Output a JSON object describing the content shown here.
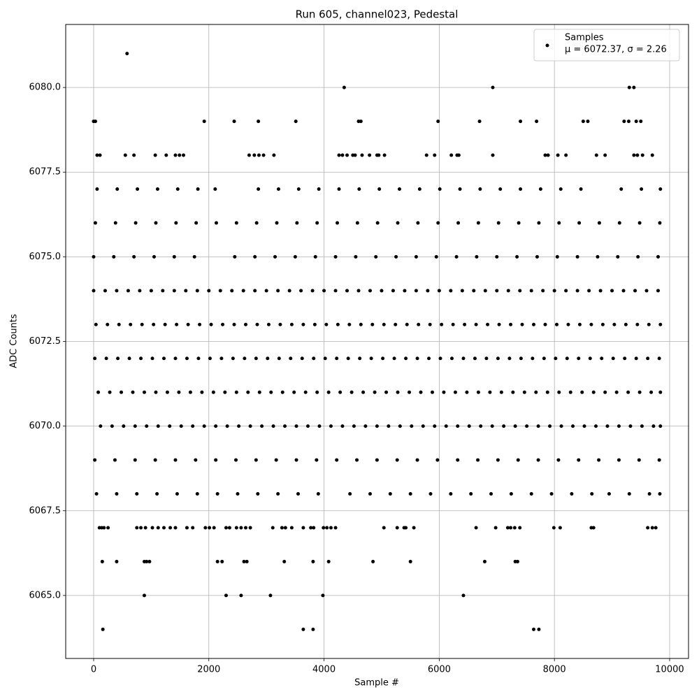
{
  "chart_data": {
    "type": "scatter",
    "title": "Run 605, channel023, Pedestal",
    "x_label": "Sample #",
    "y_label": "ADC Counts",
    "legend_stats": "μ = 6072.37, σ = 2.26",
    "legend_position": "upper right",
    "grid": true,
    "xlim": [
      -485,
      10328
    ],
    "xticks": [
      0,
      2000,
      4000,
      6000,
      8000,
      10000
    ],
    "ylim": [
      6063.14,
      6081.86
    ],
    "yticks": [
      {
        "value": 6065,
        "label": "6065.0"
      },
      {
        "value": 6067.5,
        "label": "6067.5"
      },
      {
        "value": 6070,
        "label": "6070.0"
      },
      {
        "value": 6072.5,
        "label": "6072.5"
      },
      {
        "value": 6075,
        "label": "6075.0"
      },
      {
        "value": 6077.5,
        "label": "6077.5"
      },
      {
        "value": 6080,
        "label": "6080.0"
      }
    ],
    "series": [
      {
        "name": "Samples",
        "color": "#000000",
        "x": [
          580,
          4350,
          6930,
          9300,
          9380,
          0,
          30,
          1920,
          2440,
          2860,
          3510,
          4600,
          4640,
          5980,
          6700,
          7410,
          7690,
          8500,
          8580,
          9210,
          9290,
          9420,
          9500,
          60,
          110,
          550,
          700,
          1070,
          1260,
          1420,
          1490,
          1560,
          2700,
          2790,
          2870,
          2950,
          3130,
          4260,
          4320,
          4400,
          4500,
          4540,
          4660,
          4790,
          4920,
          4950,
          5050,
          5780,
          5920,
          6210,
          6310,
          6340,
          6930,
          7840,
          7890,
          8060,
          8200,
          8730,
          8880,
          9380,
          9440,
          9530,
          9700,
          60,
          410,
          760,
          1110,
          1460,
          1810,
          2110,
          2860,
          3210,
          3560,
          3910,
          4260,
          4610,
          4960,
          5310,
          5660,
          6010,
          6360,
          6710,
          7060,
          7410,
          7760,
          8110,
          8460,
          9160,
          9510,
          9840,
          30,
          380,
          730,
          1080,
          1430,
          1780,
          2130,
          2480,
          2830,
          3180,
          3530,
          3880,
          4230,
          4580,
          4930,
          5280,
          5630,
          5980,
          6330,
          6680,
          7030,
          7380,
          7730,
          8080,
          8430,
          8780,
          9130,
          9480,
          9830,
          0,
          350,
          700,
          1050,
          1400,
          1750,
          2450,
          2800,
          3150,
          3500,
          3850,
          4200,
          4550,
          4900,
          5250,
          5600,
          5950,
          6300,
          6650,
          7000,
          7350,
          7700,
          8050,
          8400,
          8750,
          9100,
          9450,
          9800,
          0,
          200,
          400,
          600,
          800,
          1000,
          1200,
          1400,
          1600,
          1800,
          2000,
          2200,
          2400,
          2600,
          2800,
          3000,
          3200,
          3400,
          3600,
          3800,
          4000,
          4200,
          4400,
          4600,
          4800,
          5000,
          5200,
          5400,
          5600,
          5800,
          6000,
          6200,
          6400,
          6600,
          6800,
          7000,
          7200,
          7400,
          7600,
          7800,
          8000,
          8200,
          8400,
          8600,
          8800,
          9000,
          9200,
          9400,
          9600,
          9800,
          40,
          240,
          440,
          640,
          840,
          1040,
          1240,
          1440,
          1640,
          1840,
          2040,
          2240,
          2440,
          2640,
          2840,
          3040,
          3240,
          3440,
          3640,
          3840,
          4040,
          4240,
          4440,
          4640,
          4840,
          5040,
          5240,
          5440,
          5640,
          5840,
          6040,
          6240,
          6440,
          6640,
          6840,
          7040,
          7240,
          7440,
          7640,
          7840,
          8040,
          8240,
          8440,
          8640,
          8840,
          9040,
          9240,
          9440,
          9640,
          9840,
          20,
          220,
          420,
          620,
          820,
          1020,
          1220,
          1420,
          1620,
          1820,
          2020,
          2220,
          2420,
          2620,
          2820,
          3020,
          3220,
          3420,
          3620,
          3820,
          4020,
          4220,
          4420,
          4620,
          4820,
          5020,
          5220,
          5420,
          5620,
          5820,
          6020,
          6220,
          6420,
          6620,
          6820,
          7020,
          7220,
          7420,
          7620,
          7820,
          8020,
          8220,
          8420,
          8620,
          8820,
          9020,
          9220,
          9420,
          9620,
          9820,
          80,
          280,
          480,
          680,
          880,
          1080,
          1280,
          1480,
          1680,
          1880,
          2080,
          2280,
          2480,
          2680,
          2880,
          3080,
          3280,
          3480,
          3680,
          3880,
          4080,
          4280,
          4480,
          4680,
          4880,
          5080,
          5280,
          5480,
          5680,
          5880,
          6080,
          6280,
          6480,
          6680,
          6880,
          7080,
          7280,
          7480,
          7680,
          7880,
          8080,
          8280,
          8480,
          8680,
          8880,
          9080,
          9280,
          9480,
          9680,
          9840,
          120,
          320,
          520,
          720,
          920,
          1120,
          1320,
          1520,
          1720,
          1920,
          2120,
          2320,
          2520,
          2720,
          2920,
          3120,
          3320,
          3520,
          3720,
          3920,
          4120,
          4320,
          4520,
          4720,
          4920,
          5120,
          5320,
          5520,
          5720,
          5920,
          6120,
          6320,
          6520,
          6720,
          6920,
          7120,
          7320,
          7520,
          7720,
          7920,
          8120,
          8320,
          8520,
          8720,
          8920,
          9120,
          9320,
          9520,
          9720,
          9840,
          20,
          370,
          720,
          1070,
          1420,
          1770,
          2120,
          2470,
          2820,
          3170,
          3520,
          3870,
          4220,
          4570,
          4920,
          5270,
          5620,
          5970,
          6320,
          6670,
          7020,
          7370,
          7720,
          8070,
          8420,
          8770,
          9120,
          9470,
          9820,
          50,
          400,
          750,
          1100,
          1450,
          1800,
          2150,
          2500,
          2850,
          3200,
          3550,
          3900,
          4450,
          4800,
          5150,
          5500,
          5850,
          6200,
          6550,
          6900,
          7250,
          7600,
          7950,
          8300,
          8650,
          8950,
          9300,
          9650,
          9830,
          100,
          140,
          180,
          250,
          750,
          820,
          900,
          1020,
          1120,
          1220,
          1330,
          1420,
          1620,
          1720,
          1940,
          2010,
          2090,
          2300,
          2360,
          2480,
          2560,
          2640,
          2720,
          3110,
          3270,
          3330,
          3440,
          3640,
          3770,
          3820,
          3990,
          4050,
          4120,
          4200,
          5040,
          5270,
          5390,
          5420,
          5560,
          6640,
          6980,
          7190,
          7240,
          7310,
          7400,
          7990,
          8100,
          8640,
          8680,
          9620,
          9700,
          9760,
          150,
          400,
          880,
          920,
          970,
          2150,
          2230,
          2610,
          2660,
          3310,
          3810,
          4080,
          4850,
          5500,
          6790,
          7320,
          7360,
          880,
          2300,
          2560,
          3070,
          3980,
          6420,
          160,
          3640,
          3810,
          7640,
          7730
        ],
        "values": [
          6081,
          6080,
          6080,
          6080,
          6080,
          6079,
          6079,
          6079,
          6079,
          6079,
          6079,
          6079,
          6079,
          6079,
          6079,
          6079,
          6079,
          6079,
          6079,
          6079,
          6079,
          6079,
          6079,
          6078,
          6078,
          6078,
          6078,
          6078,
          6078,
          6078,
          6078,
          6078,
          6078,
          6078,
          6078,
          6078,
          6078,
          6078,
          6078,
          6078,
          6078,
          6078,
          6078,
          6078,
          6078,
          6078,
          6078,
          6078,
          6078,
          6078,
          6078,
          6078,
          6078,
          6078,
          6078,
          6078,
          6078,
          6078,
          6078,
          6078,
          6078,
          6078,
          6078,
          6077,
          6077,
          6077,
          6077,
          6077,
          6077,
          6077,
          6077,
          6077,
          6077,
          6077,
          6077,
          6077,
          6077,
          6077,
          6077,
          6077,
          6077,
          6077,
          6077,
          6077,
          6077,
          6077,
          6077,
          6077,
          6077,
          6077,
          6076,
          6076,
          6076,
          6076,
          6076,
          6076,
          6076,
          6076,
          6076,
          6076,
          6076,
          6076,
          6076,
          6076,
          6076,
          6076,
          6076,
          6076,
          6076,
          6076,
          6076,
          6076,
          6076,
          6076,
          6076,
          6076,
          6076,
          6076,
          6076,
          6075,
          6075,
          6075,
          6075,
          6075,
          6075,
          6075,
          6075,
          6075,
          6075,
          6075,
          6075,
          6075,
          6075,
          6075,
          6075,
          6075,
          6075,
          6075,
          6075,
          6075,
          6075,
          6075,
          6075,
          6075,
          6075,
          6075,
          6075,
          6074,
          6074,
          6074,
          6074,
          6074,
          6074,
          6074,
          6074,
          6074,
          6074,
          6074,
          6074,
          6074,
          6074,
          6074,
          6074,
          6074,
          6074,
          6074,
          6074,
          6074,
          6074,
          6074,
          6074,
          6074,
          6074,
          6074,
          6074,
          6074,
          6074,
          6074,
          6074,
          6074,
          6074,
          6074,
          6074,
          6074,
          6074,
          6074,
          6074,
          6074,
          6074,
          6074,
          6074,
          6074,
          6074,
          6074,
          6074,
          6074,
          6074,
          6073,
          6073,
          6073,
          6073,
          6073,
          6073,
          6073,
          6073,
          6073,
          6073,
          6073,
          6073,
          6073,
          6073,
          6073,
          6073,
          6073,
          6073,
          6073,
          6073,
          6073,
          6073,
          6073,
          6073,
          6073,
          6073,
          6073,
          6073,
          6073,
          6073,
          6073,
          6073,
          6073,
          6073,
          6073,
          6073,
          6073,
          6073,
          6073,
          6073,
          6073,
          6073,
          6073,
          6073,
          6073,
          6073,
          6073,
          6073,
          6073,
          6073,
          6072,
          6072,
          6072,
          6072,
          6072,
          6072,
          6072,
          6072,
          6072,
          6072,
          6072,
          6072,
          6072,
          6072,
          6072,
          6072,
          6072,
          6072,
          6072,
          6072,
          6072,
          6072,
          6072,
          6072,
          6072,
          6072,
          6072,
          6072,
          6072,
          6072,
          6072,
          6072,
          6072,
          6072,
          6072,
          6072,
          6072,
          6072,
          6072,
          6072,
          6072,
          6072,
          6072,
          6072,
          6072,
          6072,
          6072,
          6072,
          6072,
          6072,
          6071,
          6071,
          6071,
          6071,
          6071,
          6071,
          6071,
          6071,
          6071,
          6071,
          6071,
          6071,
          6071,
          6071,
          6071,
          6071,
          6071,
          6071,
          6071,
          6071,
          6071,
          6071,
          6071,
          6071,
          6071,
          6071,
          6071,
          6071,
          6071,
          6071,
          6071,
          6071,
          6071,
          6071,
          6071,
          6071,
          6071,
          6071,
          6071,
          6071,
          6071,
          6071,
          6071,
          6071,
          6071,
          6071,
          6071,
          6071,
          6071,
          6071,
          6070,
          6070,
          6070,
          6070,
          6070,
          6070,
          6070,
          6070,
          6070,
          6070,
          6070,
          6070,
          6070,
          6070,
          6070,
          6070,
          6070,
          6070,
          6070,
          6070,
          6070,
          6070,
          6070,
          6070,
          6070,
          6070,
          6070,
          6070,
          6070,
          6070,
          6070,
          6070,
          6070,
          6070,
          6070,
          6070,
          6070,
          6070,
          6070,
          6070,
          6070,
          6070,
          6070,
          6070,
          6070,
          6070,
          6070,
          6070,
          6070,
          6070,
          6069,
          6069,
          6069,
          6069,
          6069,
          6069,
          6069,
          6069,
          6069,
          6069,
          6069,
          6069,
          6069,
          6069,
          6069,
          6069,
          6069,
          6069,
          6069,
          6069,
          6069,
          6069,
          6069,
          6069,
          6069,
          6069,
          6069,
          6069,
          6069,
          6068,
          6068,
          6068,
          6068,
          6068,
          6068,
          6068,
          6068,
          6068,
          6068,
          6068,
          6068,
          6068,
          6068,
          6068,
          6068,
          6068,
          6068,
          6068,
          6068,
          6068,
          6068,
          6068,
          6068,
          6068,
          6068,
          6068,
          6068,
          6068,
          6067,
          6067,
          6067,
          6067,
          6067,
          6067,
          6067,
          6067,
          6067,
          6067,
          6067,
          6067,
          6067,
          6067,
          6067,
          6067,
          6067,
          6067,
          6067,
          6067,
          6067,
          6067,
          6067,
          6067,
          6067,
          6067,
          6067,
          6067,
          6067,
          6067,
          6067,
          6067,
          6067,
          6067,
          6067,
          6067,
          6067,
          6067,
          6067,
          6067,
          6067,
          6067,
          6067,
          6067,
          6067,
          6067,
          6067,
          6067,
          6067,
          6067,
          6067,
          6067,
          6066,
          6066,
          6066,
          6066,
          6066,
          6066,
          6066,
          6066,
          6066,
          6066,
          6066,
          6066,
          6066,
          6066,
          6066,
          6066,
          6066,
          6065,
          6065,
          6065,
          6065,
          6065,
          6065,
          6064,
          6064,
          6064,
          6064,
          6064
        ]
      }
    ]
  }
}
